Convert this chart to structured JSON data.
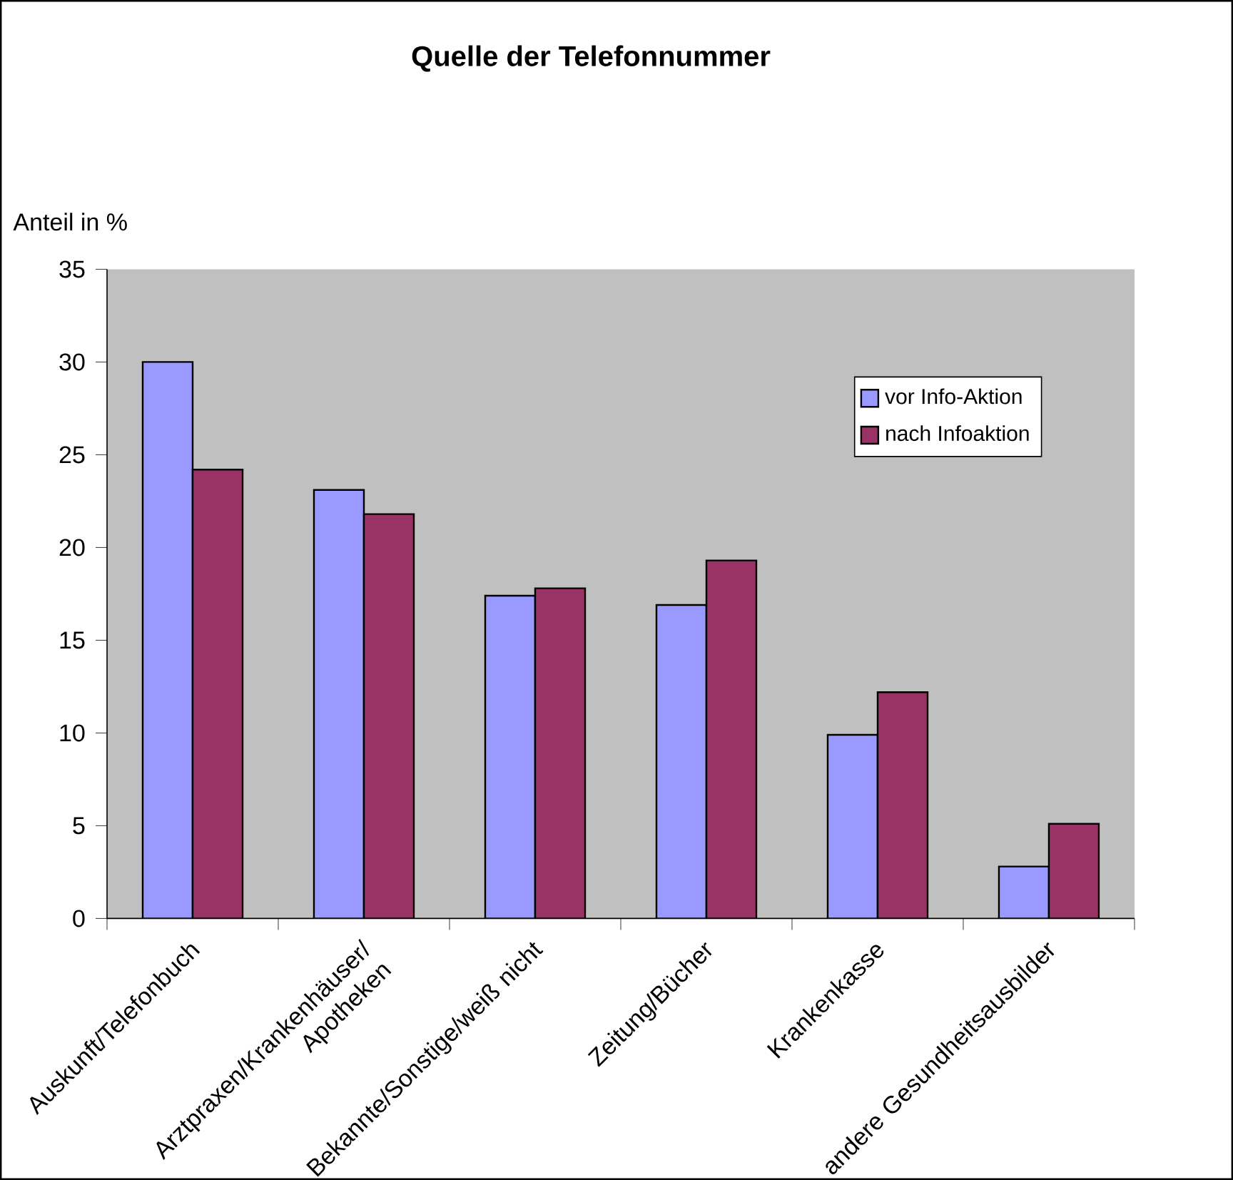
{
  "chart_data": {
    "type": "bar",
    "title": "Quelle der Telefonnummer",
    "ylabel": "Anteil in %",
    "categories": [
      "Auskunft/Telefonbuch",
      "Arztpraxen/Krankenhäuser/ Apotheken",
      "Bekannte/Sonstige/weiß nicht",
      "Zeitung/Bücher",
      "Krankenkasse",
      "andere Gesundheitsausbilder"
    ],
    "series": [
      {
        "name": "vor Info-Aktion",
        "color": "#9999ff",
        "values": [
          30.0,
          23.1,
          17.4,
          16.9,
          9.9,
          2.8
        ]
      },
      {
        "name": "nach Infoaktion",
        "color": "#993366",
        "values": [
          24.2,
          21.8,
          17.8,
          19.3,
          12.2,
          5.1
        ]
      }
    ],
    "ylim": [
      0,
      35
    ],
    "yticks": [
      0,
      5,
      10,
      15,
      20,
      25,
      30,
      35
    ],
    "grid": false,
    "legend": "top right"
  }
}
